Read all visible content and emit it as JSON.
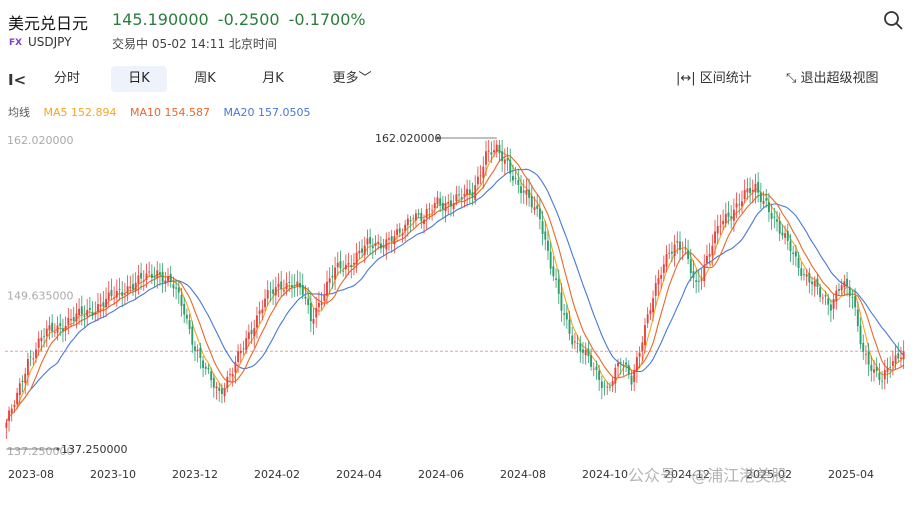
{
  "header": {
    "title": "美元兑日元",
    "price": "145.190000",
    "change": "-0.2500",
    "change_pct": "-0.1700%",
    "fx_badge": "FX",
    "code": "USDJPY",
    "status": "交易中 05-02 14:11 北京时间"
  },
  "toolbar": {
    "tabs": [
      "分时",
      "日K",
      "周K",
      "月K",
      "更多"
    ],
    "active_tab": "日K",
    "range_stats": "区间统计",
    "exit_view": "退出超级视图"
  },
  "ma": {
    "label": "均线",
    "ma5": "MA5 152.894",
    "ma10": "MA10 154.587",
    "ma20": "MA20 157.0505",
    "colors": {
      "ma5": "#f5a623",
      "ma10": "#e8682a",
      "ma20": "#4a78d4"
    }
  },
  "watermark": "公众号 · @浦江港美股",
  "chart_data": {
    "type": "candlestick",
    "x_ticks": [
      "2023-08",
      "2023-10",
      "2023-12",
      "2024-02",
      "2024-04",
      "2024-06",
      "2024-08",
      "2024-10",
      "2024-12",
      "2025-02",
      "2025-04"
    ],
    "y_labels": {
      "top": "162.020000",
      "mid": "149.635000",
      "bottom": "137.250000"
    },
    "annotations": {
      "high": "162.020000",
      "low": "137.250000"
    },
    "ylim": [
      137.25,
      162.02
    ],
    "current_price": 145.19,
    "up_color": "#e8413d",
    "down_color": "#2a9d6a",
    "trend": [
      [
        0,
        139.5
      ],
      [
        4,
        141.5
      ],
      [
        8,
        144.5
      ],
      [
        14,
        146.5
      ],
      [
        22,
        147.5
      ],
      [
        30,
        148.3
      ],
      [
        38,
        149.3
      ],
      [
        44,
        150.2
      ],
      [
        50,
        150.8
      ],
      [
        56,
        151.6
      ],
      [
        62,
        150.3
      ],
      [
        66,
        148.5
      ],
      [
        70,
        145.5
      ],
      [
        74,
        143.5
      ],
      [
        79,
        142.0
      ],
      [
        84,
        143.6
      ],
      [
        88,
        145.6
      ],
      [
        92,
        147.5
      ],
      [
        96,
        149.3
      ],
      [
        102,
        150.5
      ],
      [
        106,
        150.7
      ],
      [
        110,
        149.8
      ],
      [
        113,
        147.8
      ],
      [
        117,
        149.5
      ],
      [
        122,
        151.6
      ],
      [
        127,
        152.2
      ],
      [
        134,
        153.6
      ],
      [
        140,
        153.9
      ],
      [
        146,
        154.4
      ],
      [
        151,
        156.3
      ],
      [
        155,
        155.7
      ],
      [
        160,
        157.1
      ],
      [
        163,
        157.0
      ],
      [
        168,
        157.3
      ],
      [
        173,
        157.9
      ],
      [
        178,
        160.8
      ],
      [
        182,
        161.1
      ],
      [
        186,
        160.3
      ],
      [
        190,
        158.2
      ],
      [
        194,
        157.2
      ],
      [
        198,
        156.1
      ],
      [
        202,
        152.0
      ],
      [
        206,
        148.6
      ],
      [
        210,
        146.3
      ],
      [
        214,
        145.2
      ],
      [
        219,
        143.3
      ],
      [
        223,
        142.3
      ],
      [
        228,
        144.3
      ],
      [
        232,
        143.0
      ],
      [
        236,
        146.3
      ],
      [
        240,
        149.3
      ],
      [
        243,
        151.6
      ],
      [
        246,
        153.4
      ],
      [
        249,
        153.7
      ],
      [
        252,
        152.8
      ],
      [
        256,
        150.5
      ],
      [
        260,
        152.6
      ],
      [
        265,
        155.3
      ],
      [
        270,
        156.6
      ],
      [
        274,
        157.6
      ],
      [
        278,
        158.1
      ],
      [
        282,
        157.1
      ],
      [
        287,
        154.6
      ],
      [
        291,
        153.6
      ],
      [
        296,
        151.2
      ],
      [
        302,
        149.8
      ],
      [
        306,
        149.0
      ],
      [
        310,
        150.5
      ],
      [
        314,
        149.5
      ],
      [
        318,
        145.3
      ],
      [
        322,
        143.3
      ],
      [
        325,
        142.8
      ],
      [
        328,
        144.5
      ],
      [
        333,
        145.1
      ]
    ]
  }
}
